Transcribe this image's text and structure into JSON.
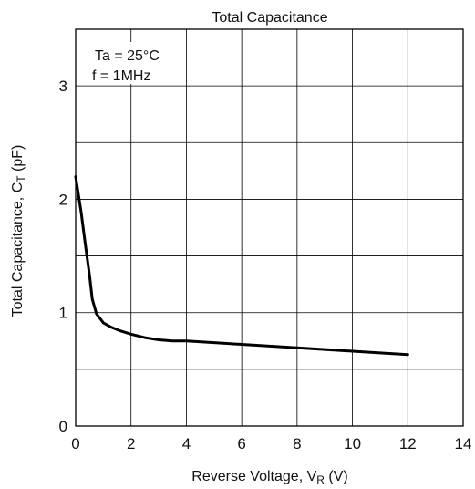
{
  "chart_data": {
    "type": "line",
    "title": "Total Capacitance",
    "xlabel": {
      "pre": "Reverse Voltage, V",
      "sub": "R",
      "post": " (V)"
    },
    "ylabel": {
      "pre": "Total Capacitance, C",
      "sub": "T",
      "post": " (pF)"
    },
    "xlim": [
      0,
      14
    ],
    "ylim": [
      0,
      3.5
    ],
    "x_ticks": [
      "0",
      "2",
      "4",
      "6",
      "8",
      "10",
      "12",
      "14"
    ],
    "y_ticks": [
      "0",
      "1",
      "2",
      "3"
    ],
    "grid": true,
    "annotations": [
      "Ta = 25°C",
      "f = 1MHz"
    ],
    "series": [
      {
        "x": [
          0,
          0.2,
          0.35,
          0.5,
          0.6,
          0.75,
          1.0,
          1.3,
          1.6,
          2.0,
          2.5,
          3.0,
          3.5,
          4.0,
          6.0,
          8.0,
          10.0,
          12.0
        ],
        "y": [
          2.2,
          1.88,
          1.6,
          1.33,
          1.12,
          0.99,
          0.91,
          0.87,
          0.84,
          0.81,
          0.78,
          0.76,
          0.75,
          0.75,
          0.72,
          0.69,
          0.66,
          0.63
        ]
      }
    ]
  }
}
